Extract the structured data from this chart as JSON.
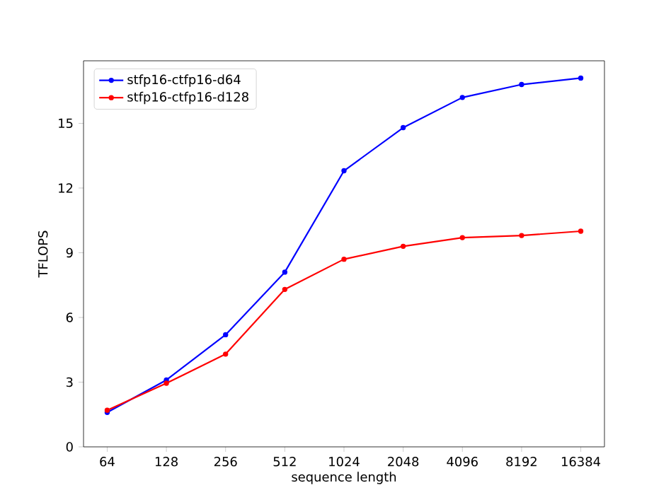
{
  "chart_data": {
    "type": "line",
    "xlabel": "sequence length",
    "ylabel": "TFLOPS",
    "categories": [
      "64",
      "128",
      "256",
      "512",
      "1024",
      "2048",
      "4096",
      "8192",
      "16384"
    ],
    "series": [
      {
        "name": "stfp16-ctfp16-d64",
        "color": "#0000ff",
        "values": [
          1.6,
          3.1,
          5.2,
          8.1,
          12.8,
          14.8,
          16.2,
          16.8,
          17.1
        ]
      },
      {
        "name": "stfp16-ctfp16-d128",
        "color": "#ff0000",
        "values": [
          1.7,
          2.95,
          4.3,
          7.3,
          8.7,
          9.3,
          9.7,
          9.8,
          10.0
        ]
      }
    ],
    "ylim": [
      0,
      17.9
    ],
    "yticks": [
      0,
      3,
      6,
      9,
      12,
      15
    ],
    "legend": "top left",
    "marker": "circle",
    "line_style": "solid",
    "grid": false
  }
}
